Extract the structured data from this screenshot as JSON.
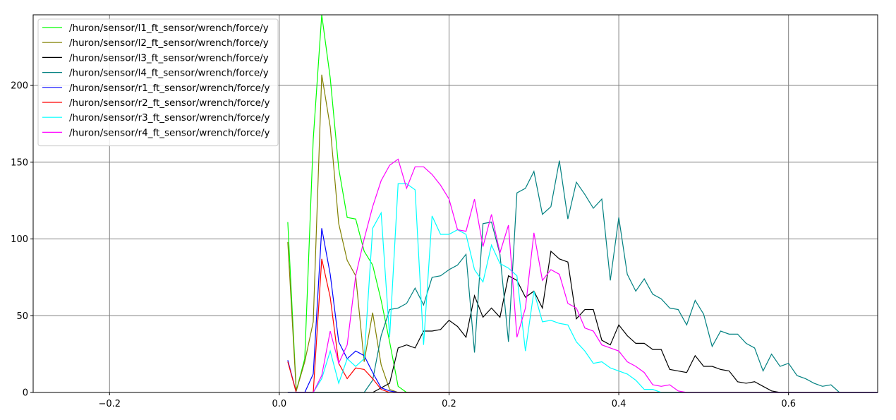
{
  "chart_data": {
    "type": "line",
    "title": "",
    "xlabel": "",
    "ylabel": "",
    "xlim": [
      -0.29,
      0.705
    ],
    "ylim": [
      0,
      246
    ],
    "grid": true,
    "legend_placement": "top-left",
    "x_ticks": [
      -0.2,
      0.0,
      0.2,
      0.4,
      0.6
    ],
    "x_tick_labels": [
      "−0.2",
      "0.0",
      "0.2",
      "0.4",
      "0.6"
    ],
    "y_ticks": [
      0,
      50,
      100,
      150,
      200
    ],
    "y_tick_labels": [
      "0",
      "50",
      "100",
      "150",
      "200"
    ],
    "x": [
      0.01,
      0.02,
      0.03,
      0.04,
      0.05,
      0.06,
      0.07,
      0.08,
      0.09,
      0.1,
      0.11,
      0.12,
      0.13,
      0.14,
      0.15,
      0.16,
      0.17,
      0.18,
      0.19,
      0.2,
      0.21,
      0.22,
      0.23,
      0.24,
      0.25,
      0.26,
      0.27,
      0.28,
      0.29,
      0.3,
      0.31,
      0.32,
      0.33,
      0.34,
      0.35,
      0.36,
      0.37,
      0.38,
      0.39,
      0.4,
      0.41,
      0.42,
      0.43,
      0.44,
      0.45,
      0.46,
      0.47,
      0.48,
      0.49,
      0.5,
      0.51,
      0.52,
      0.53,
      0.54,
      0.55,
      0.56,
      0.57,
      0.58,
      0.59,
      0.6,
      0.61,
      0.62,
      0.63,
      0.64,
      0.65,
      0.66,
      0.67,
      0.68,
      0.69,
      0.7,
      0.705
    ],
    "series": [
      {
        "name": "/huron/sensor/l1_ft_sensor/wrench/force/y",
        "color": "#00ff00",
        "values": [
          111,
          1,
          22,
          165,
          246,
          205,
          146,
          114,
          113,
          92,
          83,
          60,
          33,
          4,
          0,
          0,
          0,
          0,
          0,
          0,
          0,
          0,
          0,
          0,
          0,
          0,
          0,
          0,
          0,
          0,
          0,
          0,
          0,
          0,
          0,
          0,
          0,
          0,
          0,
          0,
          0,
          0,
          0,
          0,
          0,
          0,
          0,
          0,
          0,
          0,
          0,
          0,
          0,
          0,
          0,
          0,
          0,
          0,
          0,
          0,
          0,
          0,
          0,
          0,
          0,
          0,
          0,
          0,
          0,
          0,
          0
        ]
      },
      {
        "name": "/huron/sensor/l2_ft_sensor/wrench/force/y",
        "color": "#808000",
        "values": [
          98,
          1,
          20,
          46,
          207,
          173,
          110,
          86,
          76,
          20,
          52,
          18,
          2,
          0,
          0,
          0,
          0,
          0,
          0,
          0,
          0,
          0,
          0,
          0,
          0,
          0,
          0,
          0,
          0,
          0,
          0,
          0,
          0,
          0,
          0,
          0,
          0,
          0,
          0,
          0,
          0,
          0,
          0,
          0,
          0,
          0,
          0,
          0,
          0,
          0,
          0,
          0,
          0,
          0,
          0,
          0,
          0,
          0,
          0,
          0,
          0,
          0,
          0,
          0,
          0,
          0,
          0,
          0,
          0,
          0,
          0
        ]
      },
      {
        "name": "/huron/sensor/l3_ft_sensor/wrench/force/y",
        "color": "#000000",
        "values": [
          0,
          0,
          0,
          0,
          0,
          0,
          0,
          0,
          0,
          0,
          0,
          3,
          6,
          29,
          31,
          29,
          40,
          40,
          41,
          47,
          43,
          36,
          63,
          49,
          55,
          49,
          76,
          73,
          62,
          66,
          55,
          92,
          87,
          85,
          48,
          54,
          54,
          34,
          31,
          44,
          37,
          32,
          32,
          28,
          28,
          15,
          14,
          13,
          24,
          17,
          17,
          15,
          14,
          7,
          6,
          7,
          4,
          1,
          0,
          0,
          0,
          0,
          0,
          0,
          0,
          0,
          0,
          0,
          0,
          0,
          0
        ]
      },
      {
        "name": "/huron/sensor/l4_ft_sensor/wrench/force/y",
        "color": "#008080",
        "values": [
          0,
          0,
          0,
          0,
          0,
          0,
          0,
          0,
          0,
          0,
          8,
          37,
          54,
          55,
          58,
          68,
          57,
          75,
          76,
          80,
          83,
          90,
          26,
          110,
          111,
          90,
          33,
          130,
          133,
          144,
          116,
          121,
          151,
          113,
          137,
          129,
          120,
          126,
          73,
          114,
          77,
          66,
          74,
          64,
          61,
          55,
          54,
          44,
          60,
          51,
          30,
          40,
          38,
          38,
          32,
          29,
          14,
          25,
          17,
          19,
          11,
          9,
          6,
          4,
          5,
          0,
          0,
          0,
          0,
          0,
          0
        ]
      },
      {
        "name": "/huron/sensor/r1_ft_sensor/wrench/force/y",
        "color": "#0000ff",
        "values": [
          21,
          0,
          0,
          12,
          107,
          77,
          33,
          22,
          27,
          24,
          13,
          3,
          1,
          0,
          0,
          0,
          0,
          0,
          0,
          0,
          0,
          0,
          0,
          0,
          0,
          0,
          0,
          0,
          0,
          0,
          0,
          0,
          0,
          0,
          0,
          0,
          0,
          0,
          0,
          0,
          0,
          0,
          0,
          0,
          0,
          0,
          0,
          0,
          0,
          0,
          0,
          0,
          0,
          0,
          0,
          0,
          0,
          0,
          0,
          0,
          0,
          0,
          0,
          0,
          0,
          0,
          0,
          0,
          0,
          0,
          0
        ]
      },
      {
        "name": "/huron/sensor/r2_ft_sensor/wrench/force/y",
        "color": "#ff0000",
        "values": [
          20,
          0,
          0,
          0,
          87,
          62,
          19,
          9,
          16,
          15,
          9,
          2,
          0,
          0,
          0,
          0,
          0,
          0,
          0,
          0,
          0,
          0,
          0,
          0,
          0,
          0,
          0,
          0,
          0,
          0,
          0,
          0,
          0,
          0,
          0,
          0,
          0,
          0,
          0,
          0,
          0,
          0,
          0,
          0,
          0,
          0,
          0,
          0,
          0,
          0,
          0,
          0,
          0,
          0,
          0,
          0,
          0,
          0,
          0,
          0,
          0,
          0,
          0,
          0,
          0,
          0,
          0,
          0,
          0,
          0,
          0
        ]
      },
      {
        "name": "/huron/sensor/r3_ft_sensor/wrench/force/y",
        "color": "#00ffff",
        "values": [
          0,
          0,
          0,
          0,
          9,
          27,
          6,
          22,
          17,
          22,
          107,
          117,
          36,
          136,
          136,
          132,
          31,
          115,
          103,
          103,
          106,
          103,
          80,
          72,
          96,
          84,
          81,
          76,
          27,
          66,
          46,
          47,
          45,
          44,
          33,
          27,
          19,
          20,
          16,
          14,
          12,
          8,
          2,
          2,
          0,
          0,
          0,
          0,
          0,
          0,
          0,
          0,
          0,
          0,
          0,
          0,
          0,
          0,
          0,
          0,
          0,
          0,
          0,
          0,
          0,
          0,
          0,
          0,
          0,
          0,
          0
        ]
      },
      {
        "name": "/huron/sensor/r4_ft_sensor/wrench/force/y",
        "color": "#ff00ff",
        "values": [
          0,
          0,
          0,
          0,
          11,
          40,
          19,
          31,
          76,
          100,
          121,
          138,
          148,
          152,
          133,
          147,
          147,
          142,
          135,
          126,
          106,
          105,
          126,
          95,
          116,
          91,
          109,
          36,
          55,
          104,
          73,
          80,
          77,
          58,
          55,
          42,
          40,
          31,
          29,
          27,
          20,
          17,
          13,
          5,
          4,
          5,
          1,
          0,
          0,
          0,
          0,
          0,
          0,
          0,
          0,
          0,
          0,
          0,
          0,
          0,
          0,
          0,
          0,
          0,
          0,
          0,
          0,
          0,
          0,
          0,
          0
        ]
      }
    ]
  }
}
